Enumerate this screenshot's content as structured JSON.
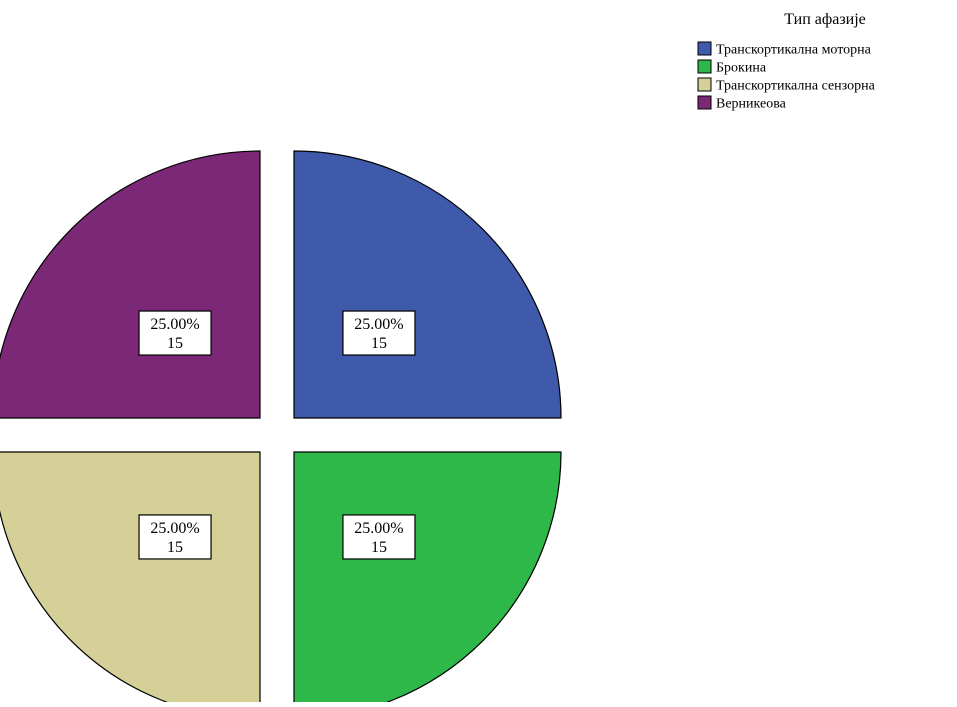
{
  "chart_data": {
    "type": "pie",
    "title": "",
    "legend_title": "Тип афазије",
    "legend_position": "top-right",
    "exploded": true,
    "slices": [
      {
        "label": "Транскортикална моторна",
        "percent": "25.00%",
        "count": "15",
        "value": 15,
        "color": "#3f59ab"
      },
      {
        "label": "Брокина",
        "percent": "25.00%",
        "count": "15",
        "value": 15,
        "color": "#2fb84a"
      },
      {
        "label": "Транскортикална сензорна",
        "percent": "25.00%",
        "count": "15",
        "value": 15,
        "color": "#d5cf98"
      },
      {
        "label": "Верникеова",
        "percent": "25.00%",
        "count": "15",
        "value": 15,
        "color": "#7b2876"
      }
    ]
  }
}
